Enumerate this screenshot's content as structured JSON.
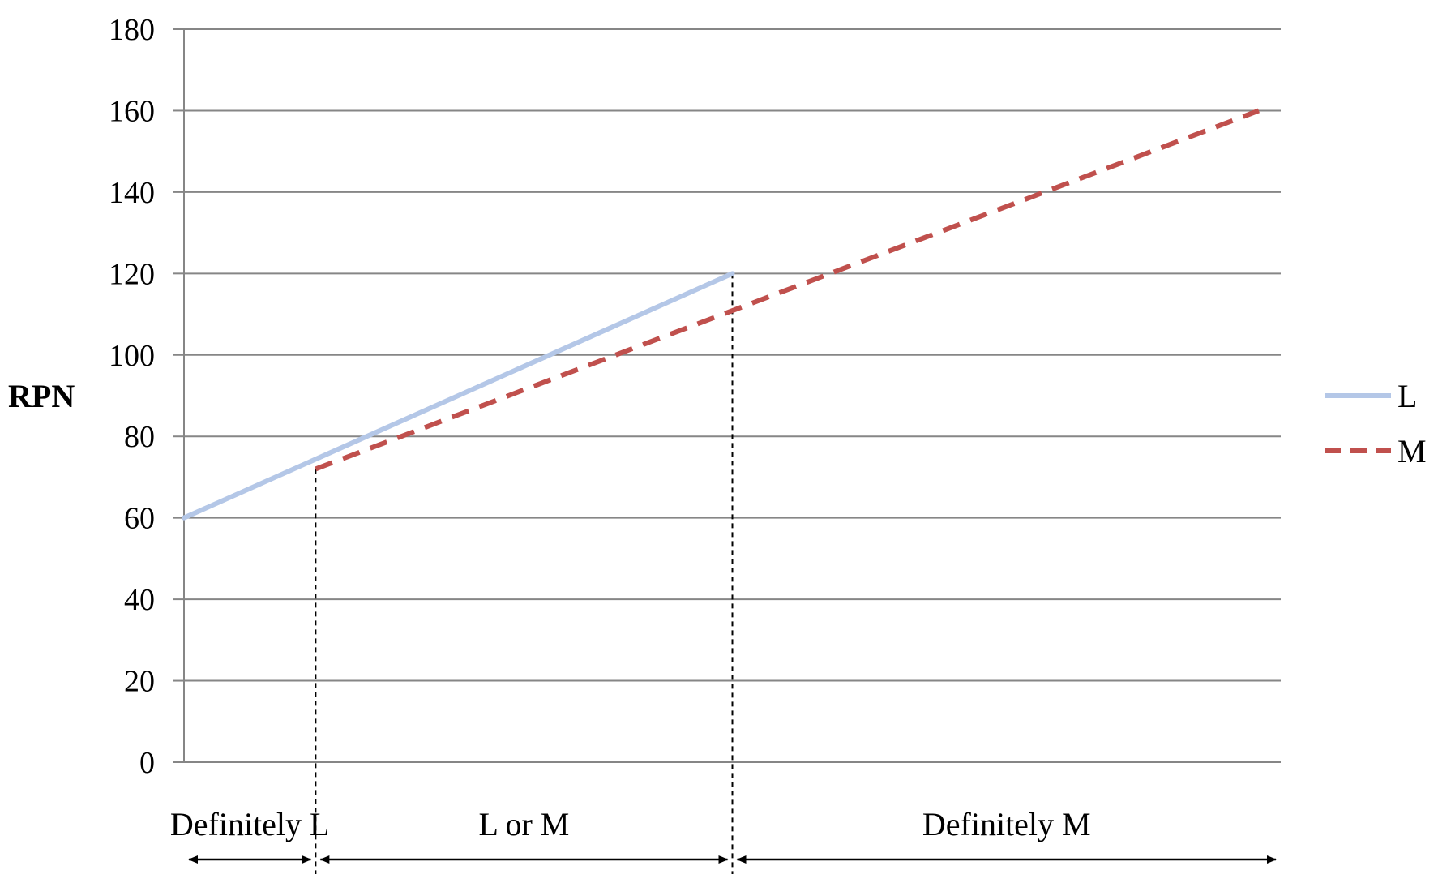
{
  "chart_data": {
    "type": "line",
    "title": "",
    "xlabel": "",
    "ylabel": "RPN",
    "ylim": [
      0,
      180
    ],
    "yticks": [
      0,
      20,
      40,
      60,
      80,
      100,
      120,
      140,
      160,
      180
    ],
    "ytick_labels": [
      "0",
      "20",
      "40",
      "60",
      "80",
      "100",
      "120",
      "140",
      "160",
      "180"
    ],
    "xlim": [
      0,
      1
    ],
    "grid": "horizontal",
    "legend_position": "right",
    "series": [
      {
        "name": "L",
        "color": "#b4c7e7",
        "style": "solid",
        "x": [
          0,
          0.5
        ],
        "y": [
          60,
          120
        ]
      },
      {
        "name": "M",
        "color": "#c0504d",
        "style": "dashed",
        "x": [
          0.12,
          0.98
        ],
        "y": [
          72,
          160
        ]
      }
    ],
    "thresholds": [
      {
        "x": 0.12,
        "y": 72
      },
      {
        "x": 0.5,
        "y": 120
      }
    ],
    "regions": [
      {
        "label": "Definitely L",
        "from": 0,
        "to": 0.12
      },
      {
        "label": "L or M",
        "from": 0.12,
        "to": 0.5
      },
      {
        "label": "Definitely M",
        "from": 0.5,
        "to": 1
      }
    ]
  }
}
